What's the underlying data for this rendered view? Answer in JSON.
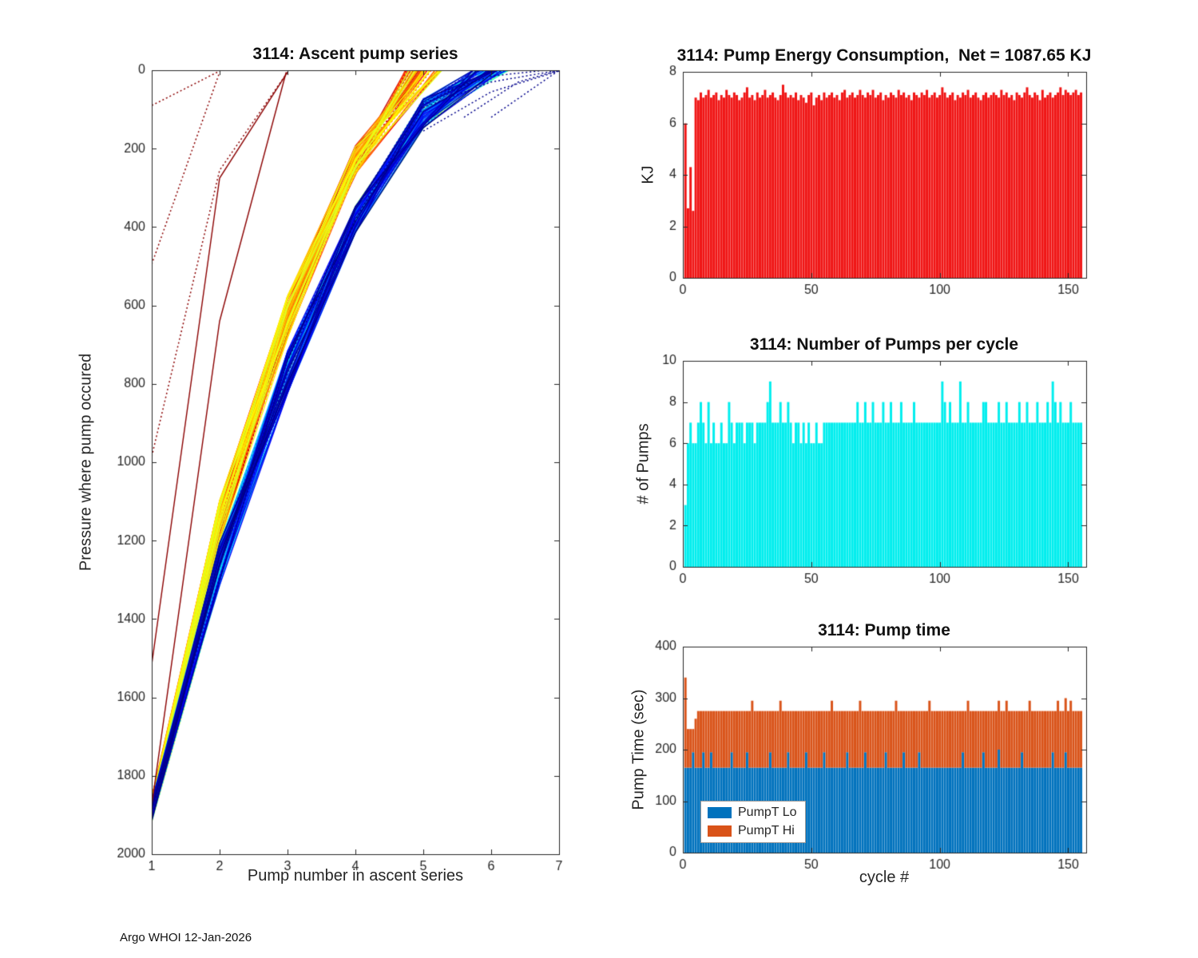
{
  "footer": {
    "text": "Argo WHOI 12-Jan-2026"
  },
  "chart_data": [
    {
      "type": "line",
      "title": "3114: Ascent pump series",
      "xlabel": "Pump number in ascent series",
      "ylabel": "Pressure where pump occured",
      "xlim": [
        1,
        7
      ],
      "ylim": [
        0,
        2000
      ],
      "y_inverted": true,
      "xticks": [
        1,
        2,
        3,
        4,
        5,
        6,
        7
      ],
      "yticks": [
        0,
        200,
        400,
        600,
        800,
        1000,
        1200,
        1400,
        1600,
        1800,
        2000
      ],
      "colormap": "jet",
      "n_cycles": 150,
      "profiles": {
        "five_pump_pressures": [
          1880,
          1150,
          630,
          230,
          0
        ],
        "six_pump_pressures": [
          1890,
          1260,
          770,
          380,
          110,
          0
        ]
      },
      "anomalies": {
        "dotted_dark_red": [
          [
            [
              1,
              90
            ],
            [
              2,
              2
            ]
          ],
          [
            [
              1,
              495
            ],
            [
              2,
              5
            ]
          ],
          [
            [
              1,
              985
            ],
            [
              2,
              255
            ],
            [
              3,
              5
            ]
          ]
        ],
        "solid_dark_red": [
          [
            [
              1,
              1515
            ],
            [
              2,
              275
            ],
            [
              3,
              5
            ]
          ],
          [
            [
              1,
              1875
            ],
            [
              2,
              640
            ],
            [
              2.98,
              5
            ]
          ]
        ],
        "dotted_blue": [
          [
            [
              5,
              155
            ],
            [
              6,
              55
            ],
            [
              7,
              2
            ]
          ],
          [
            [
              5,
              95
            ],
            [
              6,
              30
            ],
            [
              7,
              0
            ]
          ],
          [
            [
              5.6,
              120
            ],
            [
              6.4,
              30
            ],
            [
              7,
              0
            ]
          ],
          [
            [
              6,
              120
            ],
            [
              7,
              0
            ]
          ],
          [
            [
              5.2,
              60
            ],
            [
              6,
              15
            ],
            [
              6.8,
              0
            ]
          ]
        ]
      }
    },
    {
      "type": "bar",
      "title": "3114: Pump Energy Consumption,  Net = 1087.65 KJ",
      "xlabel": "",
      "ylabel": "KJ",
      "xlim": [
        0,
        157
      ],
      "ylim": [
        0,
        8
      ],
      "xticks": [
        0,
        50,
        100,
        150
      ],
      "yticks": [
        0,
        2,
        4,
        6,
        8
      ],
      "bar_color": "#f01414",
      "net_kj": 1087.65,
      "values": [
        6.0,
        2.7,
        4.3,
        2.6,
        7.0,
        6.9,
        7.2,
        7.0,
        7.1,
        7.3,
        7.0,
        7.1,
        7.2,
        6.9,
        7.1,
        7.0,
        7.3,
        7.1,
        7.0,
        7.2,
        7.1,
        6.9,
        7.0,
        7.2,
        7.4,
        7.0,
        7.1,
        6.9,
        7.2,
        7.0,
        7.1,
        7.3,
        7.0,
        7.1,
        7.2,
        7.0,
        6.9,
        7.1,
        7.5,
        7.2,
        7.0,
        7.1,
        7.0,
        7.2,
        6.9,
        7.1,
        7.0,
        6.8,
        7.1,
        7.2,
        6.7,
        7.0,
        7.1,
        6.9,
        7.2,
        7.0,
        7.1,
        7.2,
        7.0,
        7.1,
        6.9,
        7.2,
        7.3,
        7.0,
        7.1,
        7.2,
        7.0,
        7.1,
        7.3,
        7.1,
        7.0,
        7.2,
        7.1,
        7.3,
        7.0,
        7.1,
        7.2,
        6.9,
        7.1,
        7.0,
        7.2,
        7.1,
        7.0,
        7.3,
        7.1,
        7.2,
        7.0,
        7.1,
        6.9,
        7.2,
        7.1,
        7.0,
        7.2,
        7.1,
        7.3,
        7.0,
        7.1,
        7.2,
        7.0,
        7.1,
        7.4,
        7.2,
        7.0,
        7.1,
        7.2,
        6.9,
        7.1,
        7.0,
        7.2,
        7.1,
        7.3,
        7.0,
        7.1,
        7.2,
        7.0,
        6.9,
        7.1,
        7.2,
        7.0,
        7.1,
        7.2,
        7.1,
        7.0,
        7.3,
        7.1,
        7.2,
        7.0,
        7.1,
        6.9,
        7.2,
        7.1,
        7.0,
        7.2,
        7.4,
        7.1,
        7.0,
        7.2,
        7.1,
        6.9,
        7.3,
        7.0,
        7.1,
        7.2,
        7.0,
        7.1,
        7.2,
        7.4,
        7.1,
        7.3,
        7.2,
        7.1,
        7.2,
        7.3,
        7.1,
        7.2
      ]
    },
    {
      "type": "bar",
      "title": "3114: Number of Pumps per cycle",
      "xlabel": "",
      "ylabel": "# of Pumps",
      "xlim": [
        0,
        157
      ],
      "ylim": [
        0,
        10
      ],
      "xticks": [
        0,
        50,
        100,
        150
      ],
      "yticks": [
        0,
        2,
        4,
        6,
        8,
        10
      ],
      "bar_color": "#00eeee",
      "values": [
        3,
        6,
        7,
        6,
        6,
        7,
        8,
        7,
        6,
        8,
        6,
        7,
        6,
        6,
        7,
        6,
        6,
        8,
        7,
        6,
        7,
        7,
        7,
        6,
        7,
        7,
        7,
        6,
        7,
        7,
        7,
        7,
        8,
        9,
        7,
        7,
        7,
        8,
        7,
        7,
        8,
        7,
        6,
        7,
        7,
        6,
        7,
        6,
        7,
        6,
        6,
        7,
        6,
        6,
        7,
        7,
        7,
        7,
        7,
        7,
        7,
        7,
        7,
        7,
        7,
        7,
        7,
        8,
        7,
        7,
        8,
        7,
        7,
        8,
        7,
        7,
        7,
        8,
        7,
        7,
        8,
        7,
        7,
        7,
        8,
        7,
        7,
        7,
        7,
        8,
        7,
        7,
        7,
        7,
        7,
        7,
        7,
        7,
        7,
        7,
        9,
        8,
        7,
        8,
        7,
        7,
        7,
        9,
        7,
        7,
        8,
        7,
        7,
        7,
        7,
        7,
        8,
        8,
        7,
        7,
        7,
        7,
        8,
        7,
        7,
        8,
        7,
        7,
        7,
        7,
        8,
        7,
        7,
        8,
        7,
        7,
        7,
        8,
        7,
        7,
        7,
        8,
        7,
        9,
        8,
        7,
        8,
        7,
        7,
        7,
        8,
        7,
        7,
        7,
        7
      ]
    },
    {
      "type": "stacked-bar",
      "title": "3114: Pump time",
      "xlabel": "cycle #",
      "ylabel": "Pump Time (sec)",
      "xlim": [
        0,
        157
      ],
      "ylim": [
        0,
        400
      ],
      "xticks": [
        0,
        50,
        100,
        150
      ],
      "yticks": [
        0,
        100,
        200,
        300,
        400
      ],
      "legend_position": "southwest",
      "series": [
        {
          "name": "PumpT Lo",
          "color": "#0072bd",
          "values": [
            165,
            165,
            165,
            195,
            165,
            165,
            165,
            195,
            165,
            165,
            195,
            165,
            165,
            165,
            165,
            165,
            165,
            165,
            195,
            165,
            165,
            165,
            165,
            165,
            195,
            165,
            165,
            165,
            165,
            165,
            165,
            165,
            165,
            195,
            165,
            165,
            165,
            165,
            165,
            165,
            195,
            165,
            165,
            165,
            165,
            165,
            165,
            195,
            165,
            165,
            165,
            165,
            165,
            165,
            195,
            165,
            165,
            165,
            165,
            165,
            165,
            165,
            165,
            195,
            165,
            165,
            165,
            165,
            165,
            165,
            195,
            165,
            165,
            165,
            165,
            165,
            165,
            165,
            195,
            165,
            165,
            165,
            165,
            165,
            165,
            195,
            165,
            165,
            165,
            165,
            165,
            195,
            165,
            165,
            165,
            165,
            165,
            165,
            165,
            165,
            165,
            165,
            165,
            165,
            165,
            165,
            165,
            165,
            195,
            165,
            165,
            165,
            165,
            165,
            165,
            165,
            195,
            165,
            165,
            165,
            165,
            165,
            200,
            165,
            165,
            165,
            165,
            165,
            165,
            165,
            165,
            195,
            165,
            165,
            165,
            165,
            165,
            165,
            165,
            165,
            165,
            165,
            165,
            195,
            165,
            165,
            165,
            165,
            195,
            165,
            165,
            165,
            165,
            165,
            165
          ]
        },
        {
          "name": "PumpT Hi",
          "color": "#d95319",
          "values": [
            175,
            75,
            75,
            45,
            95,
            110,
            110,
            80,
            110,
            110,
            80,
            110,
            110,
            110,
            110,
            110,
            110,
            110,
            80,
            110,
            110,
            110,
            110,
            110,
            80,
            110,
            130,
            110,
            110,
            110,
            110,
            110,
            110,
            80,
            110,
            110,
            110,
            130,
            110,
            110,
            80,
            110,
            110,
            110,
            110,
            110,
            110,
            80,
            110,
            110,
            110,
            110,
            110,
            110,
            80,
            110,
            110,
            130,
            110,
            110,
            110,
            110,
            110,
            80,
            110,
            110,
            110,
            110,
            130,
            110,
            80,
            110,
            110,
            110,
            110,
            110,
            110,
            110,
            80,
            110,
            110,
            110,
            130,
            110,
            110,
            80,
            110,
            110,
            110,
            110,
            110,
            80,
            110,
            110,
            110,
            130,
            110,
            110,
            110,
            110,
            110,
            110,
            110,
            110,
            110,
            110,
            110,
            110,
            80,
            110,
            130,
            110,
            110,
            110,
            110,
            110,
            80,
            110,
            110,
            110,
            110,
            110,
            95,
            110,
            110,
            130,
            110,
            110,
            110,
            110,
            110,
            80,
            110,
            110,
            130,
            110,
            110,
            110,
            110,
            110,
            110,
            110,
            110,
            80,
            110,
            130,
            110,
            110,
            105,
            110,
            130,
            110,
            110,
            110,
            110
          ]
        }
      ]
    }
  ]
}
